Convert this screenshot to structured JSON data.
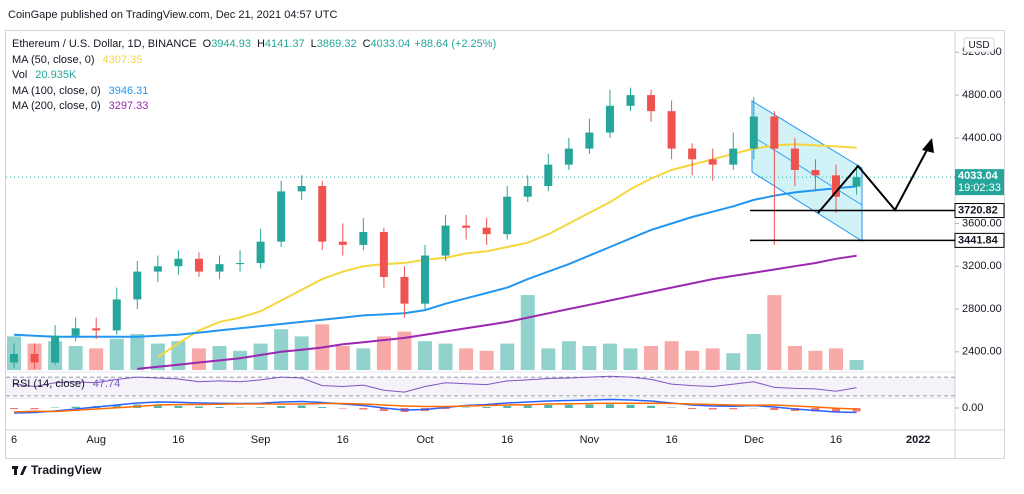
{
  "header": "CoinGape published on TradingView.com, Dec 21, 2021 04:57 UTC",
  "footer": "TradingView",
  "chart_data": {
    "type": "candlestick",
    "title": "Ethereum / U.S. Dollar, 1D, BINANCE",
    "ohlc_letters": [
      "O",
      "H",
      "L",
      "C"
    ],
    "change": "+88.64 (+2.25%)",
    "currency": "USD",
    "countdown": "19:02:33",
    "categories": [
      "6",
      null,
      null,
      null,
      "Aug",
      null,
      null,
      null,
      "16",
      null,
      null,
      null,
      "Sep",
      null,
      null,
      null,
      "16",
      null,
      null,
      null,
      "Oct",
      null,
      null,
      null,
      "16",
      null,
      null,
      null,
      "Nov",
      null,
      null,
      null,
      "16",
      null,
      null,
      null,
      "Dec",
      null,
      null,
      null,
      "16",
      null,
      null,
      null,
      "2022",
      null
    ],
    "open": [
      2300,
      2380,
      2300,
      2550,
      2620,
      2600,
      2890,
      3150,
      3200,
      3270,
      3150,
      3220,
      3230,
      3430,
      3900,
      3950,
      3430,
      3400,
      3520,
      3100,
      2850,
      3300,
      3580,
      3560,
      3500,
      3850,
      3950,
      4150,
      4300,
      4450,
      4700,
      4800,
      4650,
      4300,
      4200,
      4150,
      4300,
      4600,
      4300,
      4100,
      4050,
      3944.93,
      null,
      null,
      null,
      null
    ],
    "high": [
      2480,
      2480,
      2650,
      2720,
      2720,
      3000,
      3250,
      3300,
      3350,
      3330,
      3300,
      3350,
      3550,
      4000,
      4050,
      4000,
      3600,
      3650,
      3560,
      3200,
      3400,
      3680,
      3680,
      3650,
      3950,
      4050,
      4250,
      4400,
      4580,
      4850,
      4870,
      4850,
      4750,
      4350,
      4300,
      4450,
      4780,
      4650,
      4400,
      4200,
      4150,
      4141.37,
      null,
      null,
      null,
      null
    ],
    "low": [
      2250,
      2240,
      2280,
      2500,
      2520,
      2560,
      2800,
      3050,
      3120,
      3100,
      3080,
      3150,
      3180,
      3380,
      3820,
      3350,
      3300,
      3350,
      3000,
      2720,
      2800,
      3250,
      3450,
      3400,
      3450,
      3800,
      3900,
      4100,
      4250,
      4400,
      4650,
      4550,
      4200,
      4050,
      4000,
      4100,
      4200,
      3400,
      3950,
      3900,
      3700,
      3869.32,
      null,
      null,
      null,
      null
    ],
    "close": [
      2380,
      2300,
      2550,
      2620,
      2600,
      2890,
      3150,
      3200,
      3270,
      3150,
      3220,
      3230,
      3430,
      3900,
      3950,
      3430,
      3400,
      3520,
      3100,
      2850,
      3300,
      3580,
      3560,
      3500,
      3850,
      3950,
      4150,
      4300,
      4450,
      4700,
      4800,
      4650,
      4300,
      4200,
      4150,
      4300,
      4600,
      4300,
      4100,
      4050,
      3850,
      4033.04,
      null,
      null,
      null,
      null
    ],
    "up_color": "#26a69a",
    "down_color": "#ef5350",
    "ylim": [
      2230,
      5390
    ],
    "yticks": [
      {
        "value": 2400,
        "label": "2400.00"
      },
      {
        "value": 2800,
        "label": "2800.00"
      },
      {
        "value": 3200,
        "label": "3200.00"
      },
      {
        "value": 3600,
        "label": "3600.00"
      },
      {
        "value": 4000,
        "label": "4000.00"
      },
      {
        "value": 4400,
        "label": "4400.00"
      },
      {
        "value": 4800,
        "label": "4800.00"
      },
      {
        "value": 5200,
        "label": "5200.00"
      }
    ],
    "overlays": [
      {
        "name": "MA (50, close, 0)",
        "color": "#f5d63d",
        "values": [
          null,
          null,
          null,
          null,
          null,
          null,
          null,
          2350,
          2480,
          2600,
          2680,
          2720,
          2780,
          2880,
          2980,
          3080,
          3150,
          3200,
          3220,
          3230,
          3260,
          3280,
          3320,
          3340,
          3380,
          3420,
          3500,
          3600,
          3700,
          3800,
          3920,
          4020,
          4100,
          4150,
          4200,
          4250,
          4300,
          4330,
          4340,
          4330,
          4320,
          4307.35,
          null,
          null,
          null,
          null
        ]
      },
      {
        "name": "MA (100, close, 0)",
        "color": "#2196f3",
        "values": [
          2560,
          2550,
          2540,
          2540,
          2540,
          2540,
          2540,
          2550,
          2560,
          2580,
          2600,
          2620,
          2640,
          2660,
          2680,
          2700,
          2720,
          2740,
          2750,
          2760,
          2790,
          2850,
          2900,
          2950,
          3000,
          3080,
          3150,
          3220,
          3300,
          3380,
          3460,
          3540,
          3600,
          3660,
          3710,
          3760,
          3820,
          3860,
          3890,
          3910,
          3930,
          3946.31,
          null,
          null,
          null,
          null
        ]
      },
      {
        "name": "MA (200, close, 0)",
        "color": "#9c27b0",
        "values": [
          null,
          null,
          null,
          null,
          null,
          null,
          2240,
          2260,
          2280,
          2300,
          2320,
          2340,
          2370,
          2400,
          2420,
          2440,
          2470,
          2490,
          2510,
          2530,
          2560,
          2590,
          2620,
          2650,
          2680,
          2720,
          2760,
          2800,
          2840,
          2880,
          2920,
          2960,
          3000,
          3040,
          3080,
          3110,
          3140,
          3170,
          3200,
          3230,
          3270,
          3297.33,
          null,
          null,
          null,
          null
        ]
      }
    ],
    "volume": {
      "name": "Vol",
      "last_label": "20.935K",
      "ylim": [
        0,
        200
      ],
      "values": [
        70,
        55,
        60,
        50,
        45,
        65,
        75,
        55,
        60,
        45,
        50,
        40,
        55,
        85,
        70,
        95,
        50,
        45,
        70,
        80,
        60,
        55,
        45,
        40,
        55,
        156,
        45,
        60,
        50,
        55,
        45,
        50,
        60,
        40,
        45,
        35,
        75,
        156,
        50,
        40,
        45,
        20.935,
        null,
        null,
        null,
        null
      ]
    },
    "levels": [
      3720.82,
      3441.84
    ],
    "rsi": {
      "name": "RSI (14, close)",
      "color": "#7e57c2",
      "ylim": [
        0,
        100
      ],
      "bands": [
        30,
        70
      ],
      "values": [
        55,
        50,
        58,
        60,
        58,
        65,
        70,
        68,
        66,
        60,
        62,
        60,
        64,
        70,
        68,
        52,
        50,
        53,
        42,
        38,
        50,
        58,
        56,
        54,
        62,
        64,
        67,
        68,
        70,
        72,
        70,
        65,
        55,
        52,
        50,
        55,
        60,
        48,
        46,
        45,
        40,
        47.74,
        null,
        null,
        null,
        null
      ]
    },
    "macd": {
      "ylim": [
        -200,
        200
      ],
      "yticks": [
        {
          "value": 0,
          "label": "0.00"
        }
      ],
      "line_color": "#2962ff",
      "signal_color": "#ff6d00",
      "hist": [
        -20,
        -25,
        10,
        25,
        40,
        55,
        70,
        60,
        45,
        30,
        20,
        10,
        15,
        40,
        50,
        20,
        -10,
        -30,
        -60,
        -80,
        -60,
        -20,
        10,
        20,
        40,
        55,
        60,
        65,
        70,
        75,
        65,
        45,
        10,
        -20,
        -30,
        -25,
        -5,
        -40,
        -60,
        -70,
        -75,
        -70,
        null,
        null,
        null,
        null
      ],
      "line": [
        -100,
        -90,
        -60,
        -20,
        20,
        60,
        100,
        120,
        115,
        100,
        95,
        90,
        95,
        120,
        130,
        110,
        80,
        50,
        0,
        -40,
        -30,
        10,
        50,
        70,
        100,
        120,
        140,
        150,
        160,
        170,
        160,
        140,
        100,
        60,
        40,
        35,
        50,
        20,
        -20,
        -50,
        -80,
        -90,
        null,
        null,
        null,
        null
      ],
      "signal": [
        -80,
        -65,
        -70,
        -45,
        -20,
        5,
        30,
        60,
        70,
        70,
        75,
        80,
        80,
        80,
        80,
        90,
        90,
        80,
        60,
        40,
        30,
        30,
        40,
        50,
        60,
        65,
        80,
        85,
        90,
        95,
        95,
        95,
        90,
        80,
        70,
        60,
        55,
        60,
        40,
        20,
        -5,
        -20,
        null,
        null,
        null,
        null
      ]
    }
  }
}
